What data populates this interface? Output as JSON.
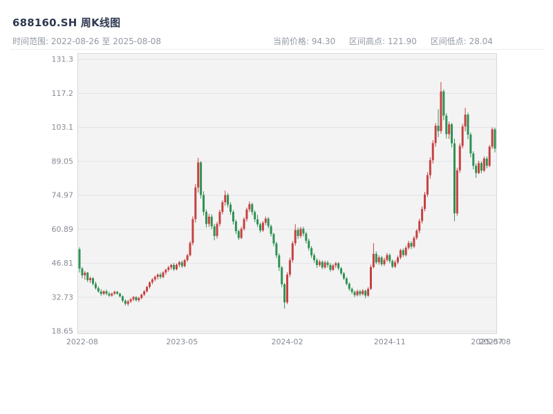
{
  "header": {
    "title": "688160.SH 周K线图",
    "range_label": "时间范围: 2022-08-26 至 2025-08-08",
    "current_price_label": "当前价格: 94.30",
    "high_label": "区间高点: 121.90",
    "low_label": "区间低点: 28.04"
  },
  "chart_data": {
    "type": "candlestick",
    "symbol": "688160.SH",
    "period": "weekly",
    "title": "688160.SH 周K线图",
    "date_start": "2022-08-26",
    "date_end": "2025-08-08",
    "current_price": 94.3,
    "range_high": 121.9,
    "range_low": 28.04,
    "y_min": 18.65,
    "y_max": 131.3,
    "grid": true,
    "y_ticks": [
      "131.3",
      "117.2",
      "103.1",
      "89.05",
      "74.97",
      "60.89",
      "46.81",
      "32.73",
      "18.65"
    ],
    "x_ticks": [
      {
        "index": 1,
        "label": "2022-08"
      },
      {
        "index": 38,
        "label": "2023-05"
      },
      {
        "index": 77,
        "label": "2024-02"
      },
      {
        "index": 115,
        "label": "2024-11"
      },
      {
        "index": 151,
        "label": "2025-07"
      },
      {
        "index": 154,
        "label": "2025-08"
      }
    ],
    "colors": {
      "up": "#c5413f",
      "down": "#2f9152",
      "plot_bg": "#f3f3f4",
      "grid": "#e3e3e7",
      "border": "#d8d8dc",
      "axis_text": "#878b95"
    },
    "candles": [
      [
        52.6,
        53.4,
        43.0,
        44.6
      ],
      [
        44.6,
        45.3,
        40.6,
        41.8
      ],
      [
        41.8,
        43.6,
        40.0,
        42.9
      ],
      [
        42.9,
        43.2,
        39.0,
        39.8
      ],
      [
        39.8,
        41.3,
        38.6,
        40.6
      ],
      [
        40.6,
        41.1,
        37.6,
        38.3
      ],
      [
        38.3,
        39.2,
        35.9,
        36.5
      ],
      [
        36.5,
        37.3,
        34.6,
        35.1
      ],
      [
        35.1,
        36.1,
        33.3,
        34.1
      ],
      [
        34.1,
        35.6,
        33.6,
        35.2
      ],
      [
        35.2,
        35.9,
        33.5,
        34.2
      ],
      [
        34.2,
        35.0,
        32.9,
        33.4
      ],
      [
        33.4,
        34.7,
        33.0,
        34.2
      ],
      [
        34.2,
        35.4,
        33.7,
        35.0
      ],
      [
        35.0,
        35.3,
        33.8,
        34.2
      ],
      [
        34.2,
        34.6,
        32.6,
        33.1
      ],
      [
        33.1,
        33.5,
        30.6,
        31.3
      ],
      [
        31.3,
        31.9,
        29.3,
        30.0
      ],
      [
        30.0,
        31.6,
        29.1,
        31.0
      ],
      [
        31.0,
        32.4,
        30.3,
        31.9
      ],
      [
        31.9,
        33.3,
        31.1,
        32.8
      ],
      [
        32.8,
        33.1,
        30.9,
        31.5
      ],
      [
        31.5,
        32.9,
        30.8,
        32.4
      ],
      [
        32.4,
        34.2,
        31.9,
        33.8
      ],
      [
        33.8,
        35.7,
        33.2,
        35.2
      ],
      [
        35.2,
        37.5,
        34.6,
        37.0
      ],
      [
        37.0,
        39.3,
        36.3,
        38.9
      ],
      [
        38.9,
        40.6,
        38.1,
        40.1
      ],
      [
        40.1,
        41.7,
        39.3,
        41.2
      ],
      [
        41.2,
        42.6,
        40.1,
        42.1
      ],
      [
        42.1,
        42.9,
        40.3,
        41.1
      ],
      [
        41.1,
        43.5,
        40.6,
        43.0
      ],
      [
        43.0,
        44.6,
        42.1,
        44.1
      ],
      [
        44.1,
        45.7,
        43.3,
        45.1
      ],
      [
        45.1,
        46.6,
        44.1,
        46.1
      ],
      [
        46.1,
        46.9,
        43.6,
        44.3
      ],
      [
        44.3,
        46.7,
        43.9,
        46.2
      ],
      [
        46.2,
        47.8,
        45.2,
        47.2
      ],
      [
        47.2,
        47.9,
        44.9,
        45.6
      ],
      [
        45.6,
        48.6,
        45.1,
        48.1
      ],
      [
        48.1,
        50.7,
        47.4,
        50.1
      ],
      [
        50.1,
        56.0,
        49.6,
        55.2
      ],
      [
        55.2,
        66.2,
        54.2,
        65.1
      ],
      [
        65.1,
        79.6,
        63.7,
        78.2
      ],
      [
        78.2,
        90.5,
        76.1,
        88.6
      ],
      [
        88.6,
        89.1,
        73.6,
        75.1
      ],
      [
        75.1,
        76.6,
        66.6,
        68.1
      ],
      [
        68.1,
        69.1,
        61.6,
        63.1
      ],
      [
        63.1,
        67.3,
        61.9,
        66.1
      ],
      [
        66.1,
        67.1,
        60.9,
        62.1
      ],
      [
        62.1,
        63.1,
        56.3,
        58.1
      ],
      [
        58.1,
        63.9,
        57.1,
        63.1
      ],
      [
        63.1,
        69.0,
        62.1,
        68.1
      ],
      [
        68.1,
        72.9,
        67.1,
        72.1
      ],
      [
        72.1,
        76.9,
        70.6,
        75.1
      ],
      [
        75.1,
        75.9,
        69.9,
        71.1
      ],
      [
        71.1,
        72.1,
        66.9,
        68.1
      ],
      [
        68.1,
        68.9,
        62.9,
        64.1
      ],
      [
        64.1,
        64.9,
        58.9,
        60.1
      ],
      [
        60.1,
        60.7,
        56.4,
        57.3
      ],
      [
        57.3,
        61.9,
        56.8,
        61.1
      ],
      [
        61.1,
        65.9,
        60.3,
        65.1
      ],
      [
        65.1,
        69.9,
        64.1,
        69.1
      ],
      [
        69.1,
        72.4,
        68.1,
        71.3
      ],
      [
        71.3,
        71.9,
        66.8,
        68.0
      ],
      [
        68.0,
        68.7,
        63.8,
        65.0
      ],
      [
        65.0,
        66.9,
        61.9,
        62.9
      ],
      [
        62.9,
        63.7,
        59.5,
        60.4
      ],
      [
        60.4,
        64.3,
        59.8,
        63.6
      ],
      [
        63.6,
        66.1,
        62.6,
        65.3
      ],
      [
        65.3,
        65.9,
        61.3,
        62.2
      ],
      [
        62.2,
        62.8,
        57.9,
        58.9
      ],
      [
        58.9,
        59.4,
        53.9,
        55.0
      ],
      [
        55.0,
        55.7,
        49.0,
        50.1
      ],
      [
        50.1,
        50.9,
        43.6,
        45.1
      ],
      [
        45.1,
        45.6,
        36.9,
        38.1
      ],
      [
        38.1,
        38.6,
        28.04,
        30.6
      ],
      [
        30.6,
        43.1,
        29.9,
        42.1
      ],
      [
        42.1,
        49.1,
        41.1,
        48.1
      ],
      [
        48.1,
        56.0,
        47.1,
        55.1
      ],
      [
        55.1,
        63.0,
        54.1,
        60.6
      ],
      [
        60.6,
        61.6,
        56.9,
        58.1
      ],
      [
        58.1,
        61.9,
        57.3,
        61.1
      ],
      [
        61.1,
        61.9,
        58.0,
        59.1
      ],
      [
        59.1,
        59.9,
        55.0,
        56.1
      ],
      [
        56.1,
        57.0,
        52.0,
        53.1
      ],
      [
        53.1,
        53.9,
        49.0,
        50.1
      ],
      [
        50.1,
        51.0,
        47.0,
        48.1
      ],
      [
        48.1,
        48.9,
        44.9,
        46.1
      ],
      [
        46.1,
        48.3,
        45.3,
        47.4
      ],
      [
        47.4,
        48.0,
        44.3,
        45.1
      ],
      [
        45.1,
        47.9,
        44.5,
        47.1
      ],
      [
        47.1,
        47.9,
        45.0,
        46.1
      ],
      [
        46.1,
        46.9,
        43.3,
        44.1
      ],
      [
        44.1,
        46.5,
        43.6,
        45.9
      ],
      [
        45.9,
        47.4,
        44.9,
        46.8
      ],
      [
        46.8,
        47.3,
        43.9,
        44.7
      ],
      [
        44.7,
        45.3,
        41.9,
        42.6
      ],
      [
        42.6,
        43.2,
        39.8,
        40.5
      ],
      [
        40.5,
        41.1,
        37.6,
        38.3
      ],
      [
        38.3,
        38.9,
        35.4,
        36.2
      ],
      [
        36.2,
        36.8,
        34.1,
        34.9
      ],
      [
        34.9,
        35.5,
        32.8,
        33.6
      ],
      [
        33.6,
        35.9,
        33.1,
        35.2
      ],
      [
        35.2,
        35.8,
        33.2,
        34.0
      ],
      [
        34.0,
        36.1,
        33.5,
        35.4
      ],
      [
        35.4,
        35.9,
        32.3,
        33.4
      ],
      [
        33.4,
        36.9,
        32.9,
        36.2
      ],
      [
        36.2,
        46.2,
        35.7,
        45.2
      ],
      [
        45.2,
        55.1,
        44.7,
        50.7
      ],
      [
        50.7,
        51.7,
        46.4,
        47.2
      ],
      [
        47.2,
        50.1,
        46.2,
        49.2
      ],
      [
        49.2,
        49.9,
        45.6,
        46.4
      ],
      [
        46.4,
        49.1,
        45.7,
        48.2
      ],
      [
        48.2,
        51.1,
        47.4,
        50.2
      ],
      [
        50.2,
        50.9,
        46.8,
        47.7
      ],
      [
        47.7,
        48.4,
        44.7,
        45.4
      ],
      [
        45.4,
        48.1,
        44.8,
        47.2
      ],
      [
        47.2,
        50.0,
        46.4,
        49.2
      ],
      [
        49.2,
        52.8,
        48.4,
        52.2
      ],
      [
        52.2,
        52.9,
        49.4,
        50.2
      ],
      [
        50.2,
        54.0,
        49.6,
        53.2
      ],
      [
        53.2,
        56.1,
        52.4,
        55.2
      ],
      [
        55.2,
        55.9,
        52.7,
        53.7
      ],
      [
        53.7,
        58.1,
        53.1,
        57.3
      ],
      [
        57.3,
        61.0,
        56.5,
        60.3
      ],
      [
        60.3,
        65.3,
        59.3,
        64.3
      ],
      [
        64.3,
        70.4,
        63.3,
        69.3
      ],
      [
        69.3,
        76.4,
        68.3,
        75.3
      ],
      [
        75.3,
        84.5,
        74.3,
        83.3
      ],
      [
        83.3,
        90.7,
        81.8,
        89.5
      ],
      [
        89.5,
        97.8,
        88.1,
        96.6
      ],
      [
        96.6,
        104.9,
        95.1,
        103.8
      ],
      [
        103.8,
        110.6,
        99.1,
        101.6
      ],
      [
        101.6,
        121.9,
        100.5,
        118.0
      ],
      [
        118.0,
        118.8,
        106.1,
        108.0
      ],
      [
        108.0,
        109.0,
        98.5,
        100.3
      ],
      [
        100.3,
        105.5,
        98.3,
        104.4
      ],
      [
        104.4,
        105.0,
        94.8,
        96.5
      ],
      [
        96.5,
        98.4,
        64.2,
        67.5
      ],
      [
        67.5,
        86.4,
        66.5,
        85.3
      ],
      [
        85.3,
        96.5,
        84.3,
        95.4
      ],
      [
        95.4,
        104.6,
        94.4,
        103.5
      ],
      [
        103.5,
        111.2,
        101.5,
        108.4
      ],
      [
        108.4,
        109.2,
        98.2,
        100.1
      ],
      [
        100.1,
        101.0,
        90.7,
        92.3
      ],
      [
        92.3,
        93.2,
        85.7,
        87.2
      ],
      [
        87.2,
        88.2,
        82.2,
        84.2
      ],
      [
        84.2,
        89.3,
        83.7,
        88.3
      ],
      [
        88.3,
        89.0,
        84.1,
        85.2
      ],
      [
        85.2,
        91.1,
        84.6,
        90.2
      ],
      [
        90.2,
        91.0,
        86.1,
        87.2
      ],
      [
        87.2,
        95.8,
        86.6,
        95.1
      ],
      [
        95.1,
        103.1,
        94.2,
        102.3
      ],
      [
        102.3,
        103.0,
        92.7,
        94.3
      ]
    ]
  }
}
